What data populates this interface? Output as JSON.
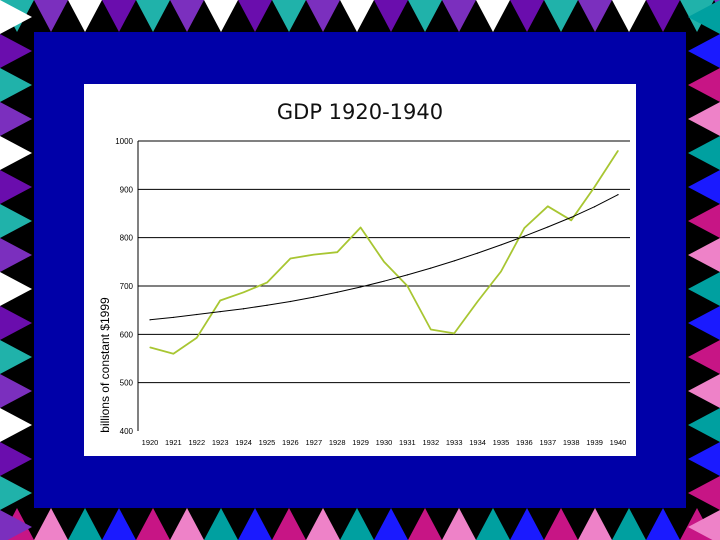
{
  "colors": {
    "panel": "#0000a8",
    "border_palette": [
      "#20b2aa",
      "#ee82c8",
      "#6a0dad",
      "#c71585",
      "#ffffff",
      "#1a1aff",
      "#7b2fbe",
      "#00a0a0"
    ],
    "gdp_line": "#a8c632",
    "trend_line": "#000000"
  },
  "chart_data": {
    "type": "line",
    "title": "GDP 1920-1940",
    "ylabel": "billions of constant $1999",
    "xlabel": "",
    "ylim": [
      400,
      1000
    ],
    "yticks": [
      400,
      500,
      600,
      700,
      800,
      900,
      1000
    ],
    "grid": "horizontal",
    "legend": "none",
    "x": [
      "1920",
      "1921",
      "1922",
      "1923",
      "1924",
      "1925",
      "1926",
      "1927",
      "1928",
      "1929",
      "1930",
      "1931",
      "1932",
      "1933",
      "1934",
      "1935",
      "1936",
      "1937",
      "1938",
      "1939",
      "1940"
    ],
    "series": [
      {
        "values": [
          573,
          560,
          593,
          670,
          687,
          707,
          757,
          765,
          770,
          821,
          750,
          700,
          610,
          602,
          668,
          730,
          820,
          865,
          836,
          905,
          980
        ]
      },
      {
        "values": [
          630,
          635,
          641,
          647,
          653,
          660,
          668,
          677,
          687,
          698,
          710,
          723,
          737,
          752,
          768,
          785,
          803,
          822,
          842,
          864,
          889
        ]
      }
    ]
  }
}
